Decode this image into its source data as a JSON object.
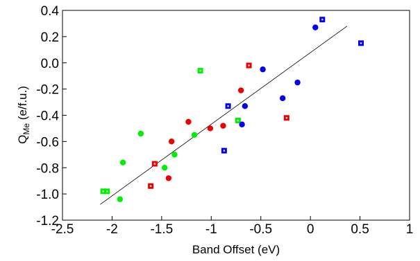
{
  "chart_data": {
    "type": "scatter",
    "xlabel": "Band Offset (eV)",
    "ylabel_main": "Q",
    "ylabel_sub": "Me",
    "ylabel_unit": " (e/f.u.)",
    "xlim": [
      -2.5,
      1
    ],
    "ylim": [
      -1.2,
      0.4
    ],
    "xticks": [
      -2.5,
      -2,
      -1.5,
      -1,
      -0.5,
      0,
      0.5,
      1
    ],
    "xtick_labels": [
      "-2.5",
      "-2",
      "-1.5",
      "-1",
      "-0.5",
      "0",
      "0.5",
      "1"
    ],
    "yticks": [
      -1.2,
      -1.0,
      -0.8,
      -0.6,
      -0.4,
      -0.2,
      0.0,
      0.2,
      0.4
    ],
    "ytick_labels": [
      "-1.2",
      "-1.0",
      "-0.8",
      "-0.6",
      "-0.4",
      "-0.2",
      "0.0",
      "0.2",
      "0.4"
    ],
    "grid": false,
    "legend": "none",
    "series": [
      {
        "color": "#00ee00",
        "marker": "circle",
        "points": [
          [
            -1.92,
            -1.04
          ],
          [
            -1.89,
            -0.76
          ],
          [
            -1.71,
            -0.54
          ],
          [
            -1.47,
            -0.8
          ],
          [
            -1.37,
            -0.7
          ],
          [
            -1.17,
            -0.55
          ]
        ]
      },
      {
        "color": "#00ee00",
        "marker": "square",
        "points": [
          [
            -2.09,
            -0.98
          ],
          [
            -2.05,
            -0.98
          ],
          [
            -1.11,
            -0.06
          ],
          [
            -0.73,
            -0.44
          ]
        ]
      },
      {
        "color": "#ee0000",
        "marker": "circle",
        "points": [
          [
            -1.43,
            -0.88
          ],
          [
            -1.4,
            -0.6
          ],
          [
            -1.23,
            -0.45
          ],
          [
            -1.01,
            -0.5
          ],
          [
            -0.88,
            -0.48
          ],
          [
            -0.7,
            -0.21
          ]
        ]
      },
      {
        "color": "#ee0000",
        "marker": "square",
        "points": [
          [
            -1.61,
            -0.94
          ],
          [
            -1.57,
            -0.77
          ],
          [
            -0.62,
            -0.02
          ],
          [
            -0.24,
            -0.42
          ]
        ]
      },
      {
        "color": "#0000ee",
        "marker": "circle",
        "points": [
          [
            -0.69,
            -0.47
          ],
          [
            -0.66,
            -0.33
          ],
          [
            -0.48,
            -0.05
          ],
          [
            -0.28,
            -0.27
          ],
          [
            -0.13,
            -0.15
          ],
          [
            0.05,
            0.27
          ]
        ]
      },
      {
        "color": "#0000ee",
        "marker": "square",
        "points": [
          [
            -0.87,
            -0.67
          ],
          [
            -0.83,
            -0.33
          ],
          [
            0.12,
            0.33
          ],
          [
            0.51,
            0.15
          ]
        ]
      }
    ],
    "trendline": {
      "color": "#000000",
      "x": [
        -2.12,
        0.37
      ],
      "y": [
        -1.08,
        0.28
      ]
    }
  }
}
